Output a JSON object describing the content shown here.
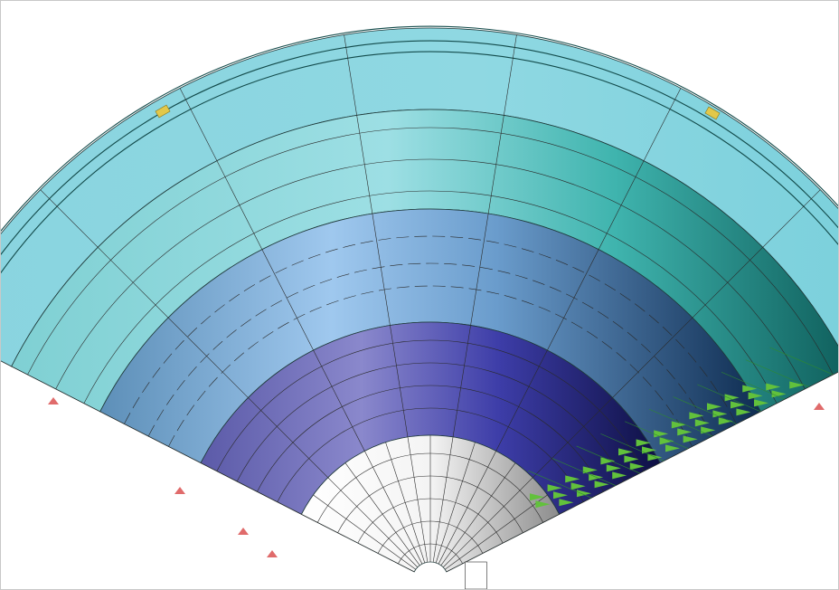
{
  "viewport": {
    "background": "#ffffff",
    "border_color": "#c8c8c8"
  },
  "model": {
    "type": "sector cross-section",
    "rings": [
      {
        "name": "outer-shell",
        "color_light": "#8fd7e0",
        "color_dark": "#0f5f5c"
      },
      {
        "name": "outer-layer",
        "color_light": "#9ee0e6",
        "color_dark": "#0f5c58"
      },
      {
        "name": "middle-layer",
        "color_light": "#9cc6ec",
        "color_dark": "#0f2d52"
      },
      {
        "name": "inner-layer",
        "color_light": "#8585c8",
        "color_dark": "#10124e"
      },
      {
        "name": "core",
        "color_light": "#ffffff",
        "color_dark": "#9a9a9a"
      }
    ],
    "load_arrow_color": "#62c13c",
    "support_color": "#e06b6b",
    "marker_color": "#e2c84a",
    "mesh_line_color": "#2a2a2a"
  }
}
